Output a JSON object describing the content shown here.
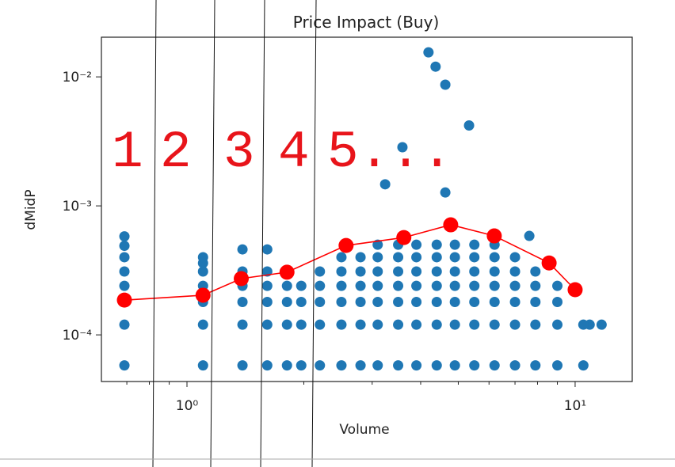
{
  "chart_data": {
    "type": "scatter",
    "title": "Price Impact (Buy)",
    "xlabel": "Volume",
    "ylabel": "dMidP",
    "xscale": "log",
    "yscale": "log",
    "xlim": [
      0.602,
      14.03
    ],
    "ylim": [
      4.35e-05,
      0.0203
    ],
    "xticks": [
      {
        "value": 1,
        "label": "10⁰"
      },
      {
        "value": 10,
        "label": "10¹"
      }
    ],
    "x_minor_ticks": [
      0.7,
      0.8,
      0.9,
      2,
      3,
      4,
      5,
      6,
      7,
      8,
      9
    ],
    "yticks": [
      {
        "value": 0.0001,
        "label": "10⁻⁴"
      },
      {
        "value": 0.001,
        "label": "10⁻³"
      },
      {
        "value": 0.01,
        "label": "10⁻²"
      }
    ],
    "scatter": {
      "color": "#1f77b4",
      "x": [
        0.69,
        0.69,
        0.69,
        0.69,
        0.69,
        0.69,
        0.69,
        0.69,
        1.1,
        1.1,
        1.1,
        1.1,
        1.1,
        1.1,
        1.1,
        1.39,
        1.39,
        1.39,
        1.39,
        1.39,
        1.39,
        1.61,
        1.61,
        1.61,
        1.61,
        1.61,
        1.61,
        1.81,
        1.81,
        1.81,
        1.81,
        1.97,
        1.97,
        1.97,
        1.97,
        2.2,
        2.2,
        2.2,
        2.2,
        2.2,
        2.5,
        2.5,
        2.5,
        2.5,
        2.5,
        2.5,
        2.8,
        2.8,
        2.8,
        2.8,
        2.8,
        2.8,
        3.1,
        3.1,
        3.1,
        3.1,
        3.1,
        3.1,
        3.1,
        3.5,
        3.5,
        3.5,
        3.5,
        3.5,
        3.5,
        3.5,
        3.9,
        3.9,
        3.9,
        3.9,
        3.9,
        3.9,
        3.9,
        4.4,
        4.4,
        4.4,
        4.4,
        4.4,
        4.4,
        4.4,
        4.9,
        4.9,
        4.9,
        4.9,
        4.9,
        4.9,
        4.9,
        5.5,
        5.5,
        5.5,
        5.5,
        5.5,
        5.5,
        5.5,
        6.2,
        6.2,
        6.2,
        6.2,
        6.2,
        6.2,
        6.2,
        7.0,
        7.0,
        7.0,
        7.0,
        7.0,
        7.0,
        7.9,
        7.9,
        7.9,
        7.9,
        7.9,
        9.0,
        9.0,
        9.0,
        9.0,
        4.19,
        4.37,
        4.63,
        5.33,
        3.59,
        3.24,
        4.63,
        7.62,
        10.5,
        10.9,
        10.5,
        11.7
      ],
      "y": [
        5.8e-05,
        0.00012,
        0.00018,
        0.00024,
        0.00031,
        0.0004,
        0.00049,
        0.00058,
        5.8e-05,
        0.00012,
        0.00018,
        0.00024,
        0.00031,
        0.00036,
        0.0004,
        5.8e-05,
        0.00012,
        0.00018,
        0.00024,
        0.00031,
        0.00046,
        5.8e-05,
        0.00012,
        0.00018,
        0.00024,
        0.00031,
        0.00046,
        5.8e-05,
        0.00012,
        0.00018,
        0.00024,
        5.8e-05,
        0.00012,
        0.00018,
        0.00024,
        5.8e-05,
        0.00012,
        0.00018,
        0.00024,
        0.00031,
        5.8e-05,
        0.00012,
        0.00018,
        0.00024,
        0.00031,
        0.0004,
        5.8e-05,
        0.00012,
        0.00018,
        0.00024,
        0.00031,
        0.0004,
        5.8e-05,
        0.00012,
        0.00018,
        0.00024,
        0.00031,
        0.0004,
        0.0005,
        5.8e-05,
        0.00012,
        0.00018,
        0.00024,
        0.00031,
        0.0004,
        0.0005,
        5.8e-05,
        0.00012,
        0.00018,
        0.00024,
        0.00031,
        0.0004,
        0.0005,
        5.8e-05,
        0.00012,
        0.00018,
        0.00024,
        0.00031,
        0.0004,
        0.0005,
        5.8e-05,
        0.00012,
        0.00018,
        0.00024,
        0.00031,
        0.0004,
        0.0005,
        5.8e-05,
        0.00012,
        0.00018,
        0.00024,
        0.00031,
        0.0004,
        0.0005,
        5.8e-05,
        0.00012,
        0.00018,
        0.00024,
        0.00031,
        0.0004,
        0.0005,
        5.8e-05,
        0.00012,
        0.00018,
        0.00024,
        0.00031,
        0.0004,
        5.8e-05,
        0.00012,
        0.00018,
        0.00024,
        0.00031,
        5.8e-05,
        0.00012,
        0.00018,
        0.00024,
        0.0155,
        0.012,
        0.0087,
        0.0042,
        0.00285,
        0.00147,
        0.00127,
        0.000585,
        5.8e-05,
        0.00012,
        0.00012,
        0.00012
      ]
    },
    "line": {
      "color": "#ff0000",
      "x": [
        0.69,
        1.1,
        1.38,
        1.81,
        2.57,
        3.62,
        4.78,
        6.19,
        8.57,
        10.0
      ],
      "y": [
        0.000186,
        0.000203,
        0.000273,
        0.000306,
        0.000493,
        0.000568,
        0.000713,
        0.000585,
        0.000361,
        0.000224
      ]
    },
    "annotations": [
      "1",
      "2",
      "3",
      "4",
      "5..."
    ]
  }
}
